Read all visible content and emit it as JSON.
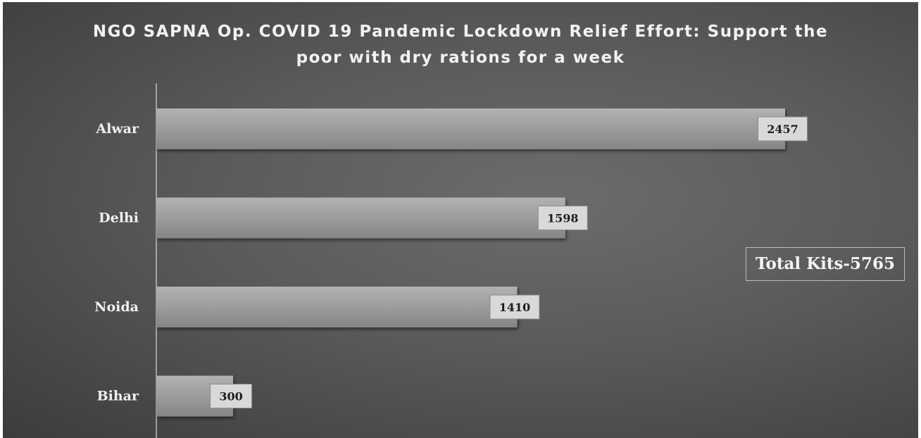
{
  "chart_data": {
    "type": "bar",
    "orientation": "horizontal",
    "title_lines": [
      "NGO SAPNA Op. COVID 19 Pandemic Lockdown Relief Effort: Support the",
      "poor with dry rations for a week"
    ],
    "categories": [
      "Alwar",
      "Delhi",
      "Noida",
      "Bihar"
    ],
    "values": [
      2457,
      1598,
      1410,
      300
    ],
    "data_labels": [
      "2457",
      "1598",
      "1410",
      "300"
    ],
    "xlim": [
      0,
      2600
    ],
    "grid": false,
    "legend": "none",
    "annotation": "Total Kits-5765",
    "colors": {
      "background": "#5a5a5a",
      "bar": "#9a9a9a",
      "label_box": "#d9d9d9",
      "text": "#f0f0f0"
    }
  }
}
